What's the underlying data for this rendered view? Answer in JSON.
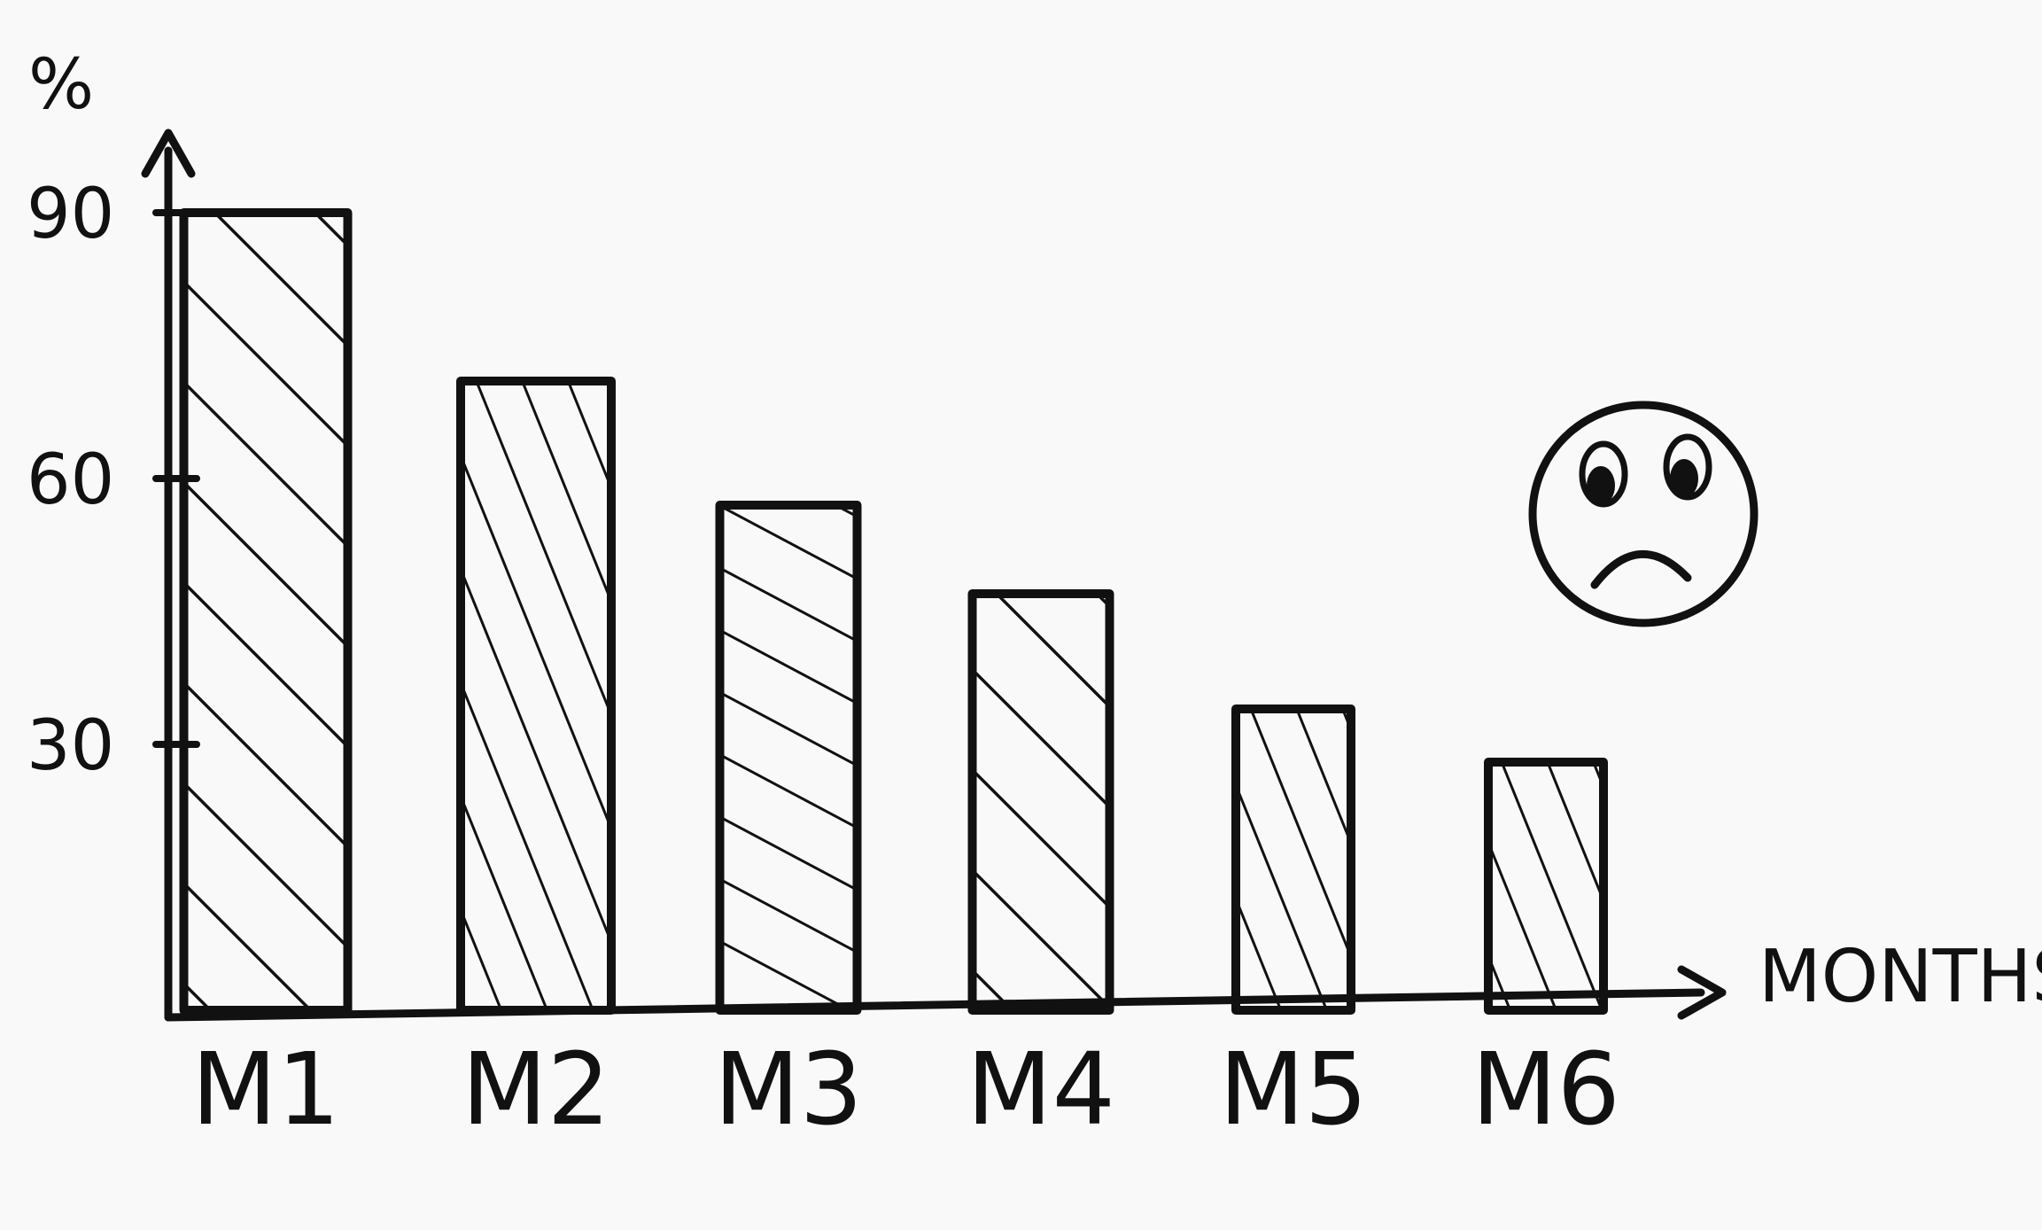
{
  "chart_data": {
    "type": "bar",
    "title": "",
    "ylabel": "%",
    "xlabel": "MONTHS",
    "categories": [
      "M1",
      "M2",
      "M3",
      "M4",
      "M5",
      "M6"
    ],
    "values": [
      90,
      71,
      57,
      47,
      34,
      28
    ],
    "ylim": [
      0,
      90
    ],
    "yticks": [
      "30",
      "60",
      "90"
    ],
    "ytick_values": [
      30,
      60,
      90
    ],
    "bar_fill": "hatched",
    "grid": false,
    "annotation": "sad-face-icon",
    "colors": {
      "ink": "#111111",
      "paper": "#f9f9f9"
    }
  }
}
